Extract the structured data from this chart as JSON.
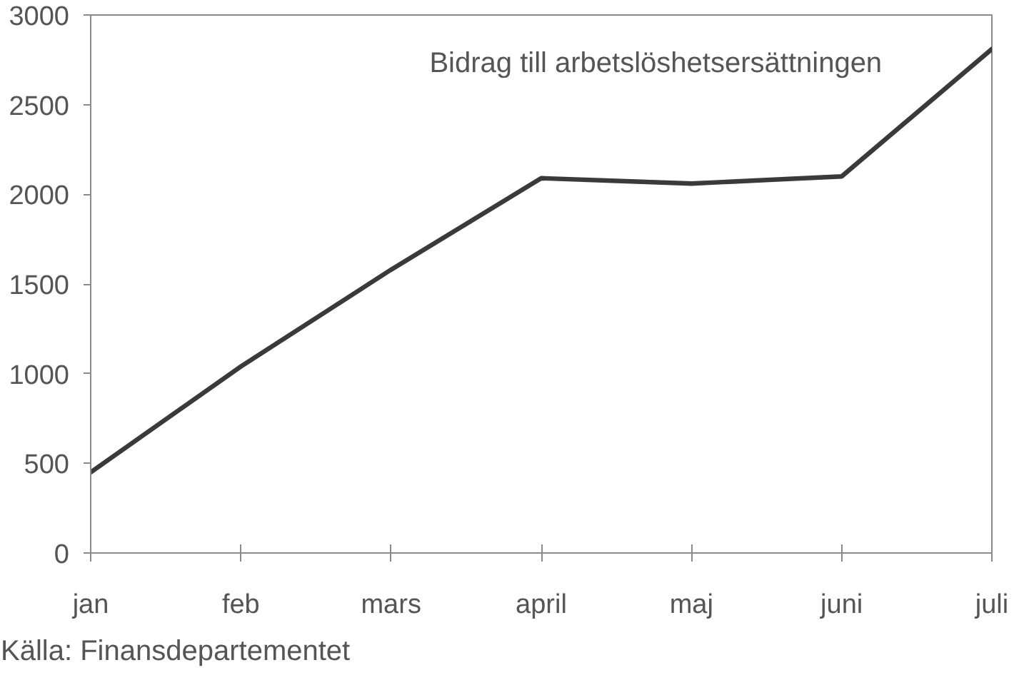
{
  "chart_data": {
    "type": "line",
    "title": "Bidrag till arbetslöshetsersättningen",
    "categories": [
      "jan",
      "feb",
      "mars",
      "april",
      "maj",
      "juni",
      "juli"
    ],
    "series": [
      {
        "color": "#3a3a3a",
        "values": [
          450,
          1040,
          1580,
          2090,
          2060,
          2100,
          2810
        ]
      }
    ],
    "ylim": [
      0,
      3000
    ],
    "yticks": [
      0,
      500,
      1000,
      1500,
      2000,
      2500,
      3000
    ],
    "grid": false,
    "line_style": "solid",
    "annotations": [
      "Källa: Finansdepartementet"
    ]
  }
}
